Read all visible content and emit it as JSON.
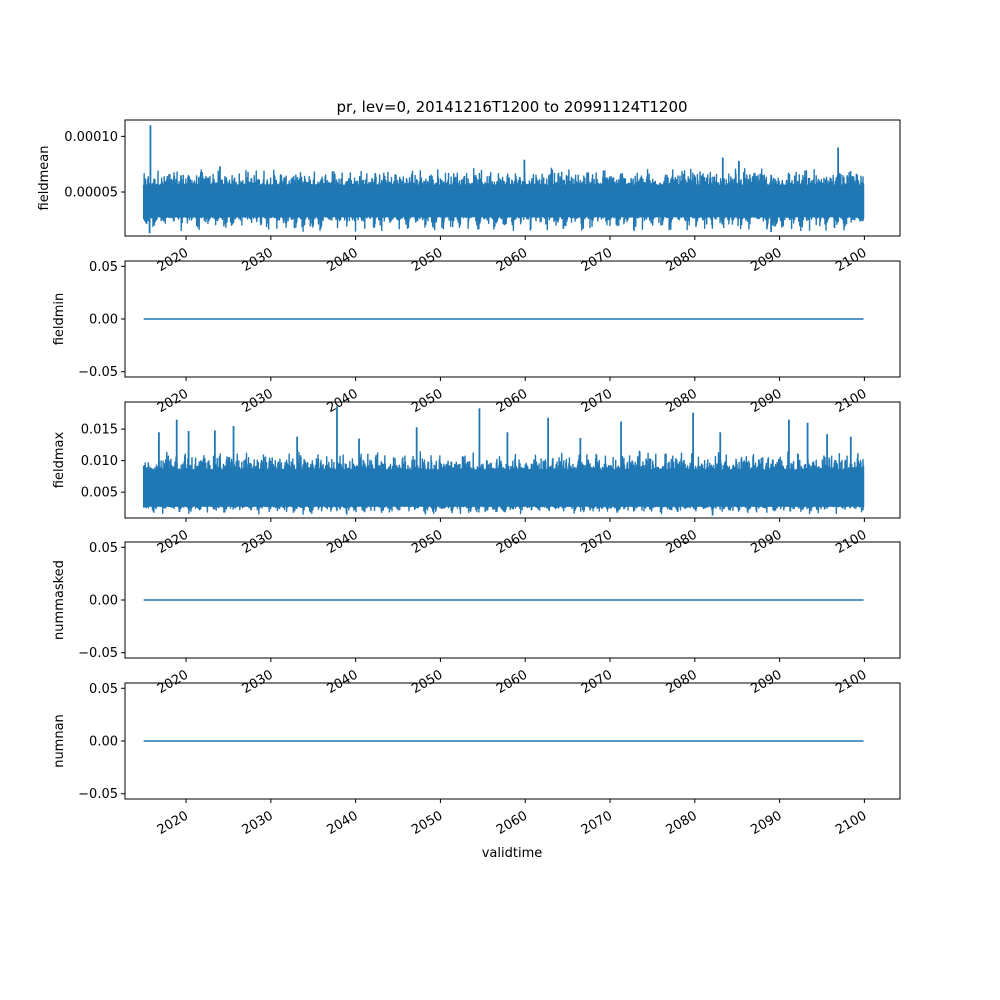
{
  "figure": {
    "title": "pr, lev=0, 20141216T1200 to 20991124T1200",
    "xlabel": "validtime"
  },
  "colors": {
    "line": "#1f77b4",
    "axes": "#000000",
    "background": "#ffffff"
  },
  "chart_data": [
    {
      "type": "line",
      "ylabel": "fieldmean",
      "x_range": [
        "2014-12-16T12:00",
        "2099-11-24T12:00"
      ],
      "xlim": [
        2012.8,
        2104.2
      ],
      "ylim": [
        1.05e-05,
        0.0001147
      ],
      "yticks": [
        5e-05,
        0.0001
      ],
      "ytick_labels": [
        "0.00005",
        "0.00010"
      ],
      "xticks": [
        2020,
        2030,
        2040,
        2050,
        2060,
        2070,
        2080,
        2090,
        2100
      ],
      "xtick_labels": [
        "2020",
        "2030",
        "2040",
        "2050",
        "2060",
        "2070",
        "2080",
        "2090",
        "2100"
      ],
      "series": [
        {
          "band": {
            "low": 2.8e-05,
            "high": 5.6e-05
          },
          "envelope_min": 1.4e-05,
          "envelope_max": 7.2e-05,
          "spikes": [
            {
              "x": 2015.8,
              "y": 0.00011
            },
            {
              "x": 2015.7,
              "y": 1.3e-05
            },
            {
              "x": 2019.4,
              "y": 6.5e-05
            },
            {
              "x": 2024.0,
              "y": 7.3e-05
            },
            {
              "x": 2059.9,
              "y": 7.9e-05
            },
            {
              "x": 2083.3,
              "y": 8.1e-05
            },
            {
              "x": 2085.2,
              "y": 7.8e-05
            },
            {
              "x": 2096.9,
              "y": 9e-05
            },
            {
              "x": 2089.0,
              "y": 1.4e-05
            },
            {
              "x": 2064.5,
              "y": 1.7e-05
            }
          ]
        }
      ]
    },
    {
      "type": "line",
      "ylabel": "fieldmin",
      "xlim": [
        2012.8,
        2104.2
      ],
      "ylim": [
        -0.055,
        0.055
      ],
      "yticks": [
        -0.05,
        0.0,
        0.05
      ],
      "ytick_labels": [
        "−0.05",
        "0.00",
        "0.05"
      ],
      "xticks": [
        2020,
        2030,
        2040,
        2050,
        2060,
        2070,
        2080,
        2090,
        2100
      ],
      "xtick_labels": [
        "2020",
        "2030",
        "2040",
        "2050",
        "2060",
        "2070",
        "2080",
        "2090",
        "2100"
      ],
      "series": [
        {
          "x": [
            2015.0,
            2099.9
          ],
          "y": [
            0,
            0
          ]
        }
      ]
    },
    {
      "type": "line",
      "ylabel": "fieldmax",
      "xlim": [
        2012.8,
        2104.2
      ],
      "ylim": [
        0.0009,
        0.0193
      ],
      "yticks": [
        0.005,
        0.01,
        0.015
      ],
      "ytick_labels": [
        "0.005",
        "0.010",
        "0.015"
      ],
      "xticks": [
        2020,
        2030,
        2040,
        2050,
        2060,
        2070,
        2080,
        2090,
        2100
      ],
      "xtick_labels": [
        "2020",
        "2030",
        "2040",
        "2050",
        "2060",
        "2070",
        "2080",
        "2090",
        "2100"
      ],
      "series": [
        {
          "band": {
            "low": 0.0028,
            "high": 0.0085
          },
          "envelope_min": 0.0015,
          "envelope_max": 0.0115,
          "spikes": [
            {
              "x": 2016.8,
              "y": 0.0145
            },
            {
              "x": 2018.9,
              "y": 0.0165
            },
            {
              "x": 2020.3,
              "y": 0.0147
            },
            {
              "x": 2023.4,
              "y": 0.0148
            },
            {
              "x": 2025.6,
              "y": 0.0155
            },
            {
              "x": 2033.1,
              "y": 0.0138
            },
            {
              "x": 2037.8,
              "y": 0.0186
            },
            {
              "x": 2040.4,
              "y": 0.0135
            },
            {
              "x": 2047.2,
              "y": 0.0153
            },
            {
              "x": 2054.6,
              "y": 0.0183
            },
            {
              "x": 2057.9,
              "y": 0.0145
            },
            {
              "x": 2062.7,
              "y": 0.0168
            },
            {
              "x": 2066.5,
              "y": 0.0136
            },
            {
              "x": 2071.3,
              "y": 0.0162
            },
            {
              "x": 2079.8,
              "y": 0.0176
            },
            {
              "x": 2083.0,
              "y": 0.0145
            },
            {
              "x": 2091.1,
              "y": 0.0165
            },
            {
              "x": 2093.3,
              "y": 0.016
            },
            {
              "x": 2095.6,
              "y": 0.0142
            },
            {
              "x": 2098.4,
              "y": 0.0138
            },
            {
              "x": 2082.1,
              "y": 0.0013
            }
          ]
        }
      ]
    },
    {
      "type": "line",
      "ylabel": "nummasked",
      "xlim": [
        2012.8,
        2104.2
      ],
      "ylim": [
        -0.055,
        0.055
      ],
      "yticks": [
        -0.05,
        0.0,
        0.05
      ],
      "ytick_labels": [
        "−0.05",
        "0.00",
        "0.05"
      ],
      "xticks": [
        2020,
        2030,
        2040,
        2050,
        2060,
        2070,
        2080,
        2090,
        2100
      ],
      "xtick_labels": [
        "2020",
        "2030",
        "2040",
        "2050",
        "2060",
        "2070",
        "2080",
        "2090",
        "2100"
      ],
      "series": [
        {
          "x": [
            2015.0,
            2099.9
          ],
          "y": [
            0,
            0
          ]
        }
      ]
    },
    {
      "type": "line",
      "ylabel": "numnan",
      "xlim": [
        2012.8,
        2104.2
      ],
      "ylim": [
        -0.055,
        0.055
      ],
      "yticks": [
        -0.05,
        0.0,
        0.05
      ],
      "ytick_labels": [
        "−0.05",
        "0.00",
        "0.05"
      ],
      "xticks": [
        2020,
        2030,
        2040,
        2050,
        2060,
        2070,
        2080,
        2090,
        2100
      ],
      "xtick_labels": [
        "2020",
        "2030",
        "2040",
        "2050",
        "2060",
        "2070",
        "2080",
        "2090",
        "2100"
      ],
      "series": [
        {
          "x": [
            2015.0,
            2099.9
          ],
          "y": [
            0,
            0
          ]
        }
      ]
    }
  ]
}
